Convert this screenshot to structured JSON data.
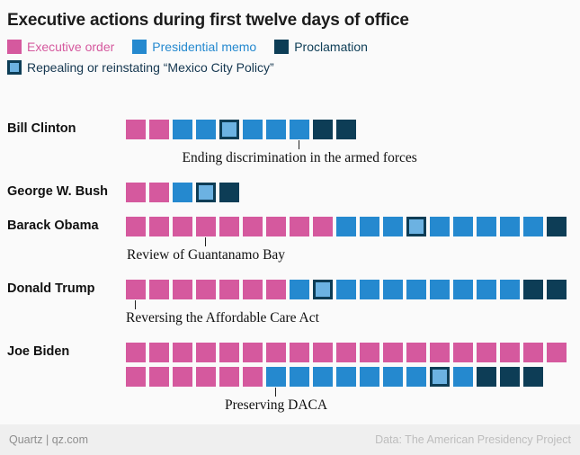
{
  "footer": {
    "left": "Quartz | qz.com",
    "right": "Data: The American Presidency Project"
  },
  "colors": {
    "executive_order": "#d5599e",
    "presidential_memo": "#2589cf",
    "proclamation": "#0d3d56",
    "mexico_city_fill": "#6cb2e2",
    "mexico_city_border": "#0d3d56",
    "background": "#fafafa",
    "legend_mexico_text": "#14364f"
  },
  "legend": {
    "items": [
      {
        "key": "eo",
        "label": "Executive order"
      },
      {
        "key": "memo",
        "label": "Presidential memo"
      },
      {
        "key": "proc",
        "label": "Proclamation"
      }
    ],
    "mexico": {
      "key": "mexico",
      "label": "Repealing or reinstating “Mexico City Policy”"
    }
  },
  "chart_data": {
    "type": "icon-array",
    "title": "Executive actions during first twelve days of office",
    "unit": "one square = one executive action",
    "legend_position": "top",
    "squares_per_row": 19,
    "categories": [
      "Executive order",
      "Presidential memo",
      "Proclamation"
    ],
    "rows": [
      {
        "president": "Bill Clinton",
        "counts": {
          "executive_order": 2,
          "presidential_memo": 6,
          "proclamation": 2
        },
        "sequence": [
          "eo",
          "eo",
          "memo",
          "memo",
          "mexico",
          "memo",
          "memo",
          "memo",
          "proc",
          "proc"
        ],
        "annotation": {
          "text": "Ending discrimination in the armed forces",
          "square_index": 8
        }
      },
      {
        "president": "George W. Bush",
        "counts": {
          "executive_order": 2,
          "presidential_memo": 2,
          "proclamation": 1
        },
        "sequence": [
          "eo",
          "eo",
          "memo",
          "mexico",
          "proc"
        ],
        "annotation": null
      },
      {
        "president": "Barack Obama",
        "counts": {
          "executive_order": 9,
          "presidential_memo": 9,
          "proclamation": 1
        },
        "sequence": [
          "eo",
          "eo",
          "eo",
          "eo",
          "eo",
          "eo",
          "eo",
          "eo",
          "eo",
          "memo",
          "memo",
          "memo",
          "mexico",
          "memo",
          "memo",
          "memo",
          "memo",
          "memo",
          "proc"
        ],
        "annotation": {
          "text": "Review of Guantanamo Bay",
          "square_index": 4
        }
      },
      {
        "president": "Donald Trump",
        "counts": {
          "executive_order": 7,
          "presidential_memo": 10,
          "proclamation": 2
        },
        "sequence": [
          "eo",
          "eo",
          "eo",
          "eo",
          "eo",
          "eo",
          "eo",
          "memo",
          "mexico",
          "memo",
          "memo",
          "memo",
          "memo",
          "memo",
          "memo",
          "memo",
          "memo",
          "proc",
          "proc"
        ],
        "annotation": {
          "text": "Reversing the Affordable Care Act",
          "square_index": 1
        }
      },
      {
        "president": "Joe Biden",
        "counts": {
          "executive_order": 25,
          "presidential_memo": 9,
          "proclamation": 3
        },
        "sequence": [
          "eo",
          "eo",
          "eo",
          "eo",
          "eo",
          "eo",
          "eo",
          "eo",
          "eo",
          "eo",
          "eo",
          "eo",
          "eo",
          "eo",
          "eo",
          "eo",
          "eo",
          "eo",
          "eo",
          "eo",
          "eo",
          "eo",
          "eo",
          "eo",
          "eo",
          "memo",
          "memo",
          "memo",
          "memo",
          "memo",
          "memo",
          "memo",
          "mexico",
          "memo",
          "proc",
          "proc",
          "proc"
        ],
        "annotation": {
          "text": "Preserving DACA",
          "square_index": 26
        }
      }
    ]
  }
}
